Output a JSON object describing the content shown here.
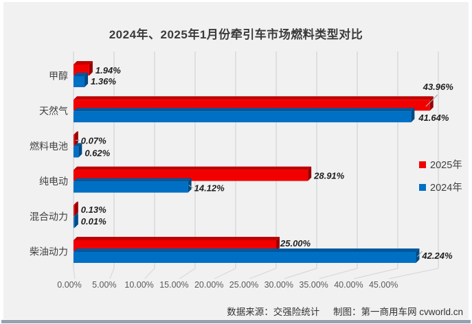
{
  "chart_data": {
    "type": "bar",
    "orientation": "horizontal",
    "style": "3d",
    "title": "2024年、2025年1月份牵引车市场燃料类型对比",
    "categories": [
      "甲醇",
      "天然气",
      "燃料电池",
      "纯电动",
      "混合动力",
      "柴油动力"
    ],
    "series": [
      {
        "name": "2025年",
        "color": "#f20000",
        "color_top": "#c00000",
        "color_side": "#990000",
        "values": [
          1.94,
          43.96,
          0.07,
          28.91,
          0.13,
          25.0
        ],
        "labels": [
          "1.94%",
          "43.96%",
          "0.07%",
          "28.91%",
          "0.13%",
          "25.00%"
        ]
      },
      {
        "name": "2024年",
        "color": "#0070c4",
        "color_top": "#00589d",
        "color_side": "#004a85",
        "values": [
          1.36,
          41.64,
          0.62,
          14.12,
          0.01,
          42.24
        ],
        "labels": [
          "1.36%",
          "41.64%",
          "0.62%",
          "14.12%",
          "0.01%",
          "42.24%"
        ]
      }
    ],
    "x_ticks": [
      "0.00%",
      "5.00%",
      "10.00%",
      "15.00%",
      "20.00%",
      "25.00%",
      "30.00%",
      "35.00%",
      "40.00%",
      "45.00%"
    ],
    "xlim": [
      0,
      45
    ],
    "grid": true,
    "legend_position": "middle-right",
    "colors": {
      "background": "#f1f1f2",
      "gridline": "#d9d9db",
      "leader": "#a6a6a6",
      "tick_text": "#595959",
      "title_text": "#3a3a3a",
      "bottom_strip": "#97a1af"
    }
  },
  "footer": {
    "source": "数据来源：交强险统计",
    "credit": "制图：第一商用车网 cvworld.cn"
  }
}
